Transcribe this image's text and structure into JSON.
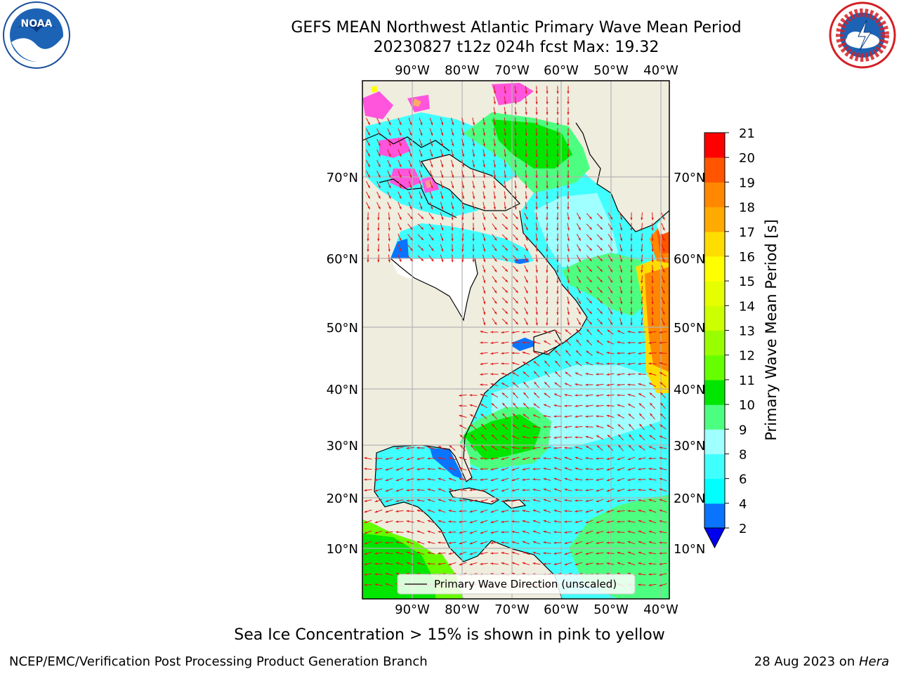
{
  "header": {
    "title_line1": "GEFS MEAN Northwest Atlantic Primary Wave Mean Period",
    "title_line2": "20230827 t12z 024h fcst   Max: 19.32"
  },
  "logos": {
    "left": {
      "name": "NOARA-logo",
      "text": "NOAA"
    },
    "right": {
      "name": "nws-logo"
    }
  },
  "map": {
    "lon_labels": [
      "90°W",
      "80°W",
      "70°W",
      "60°W",
      "50°W",
      "40°W"
    ],
    "lat_labels": [
      "70°N",
      "60°N",
      "50°N",
      "40°N",
      "30°N",
      "20°N",
      "10°N"
    ],
    "legend_label": "Primary Wave Direction (unscaled)",
    "colors": {
      "land": "#efedde",
      "grid": "#b3b3b3",
      "arrow": "#e11a1a",
      "coast": "#000000"
    }
  },
  "colorbar": {
    "label": "Primary Wave Mean Period [s]",
    "ticks": [
      "2",
      "4",
      "6",
      "8",
      "9",
      "10",
      "11",
      "12",
      "13",
      "14",
      "15",
      "16",
      "17",
      "18",
      "19",
      "20",
      "21"
    ],
    "colors": [
      "#0a74ff",
      "#00ffff",
      "#40ffff",
      "#a0ffff",
      "#4dff80",
      "#00e600",
      "#66ff00",
      "#99ff00",
      "#ccff00",
      "#e6ff00",
      "#ffff00",
      "#ffdd00",
      "#ffaa00",
      "#ff8800",
      "#ff5500",
      "#ff2200"
    ],
    "under_color": "#0000ee",
    "top_color": "#ff0000"
  },
  "footer": {
    "note": "Sea Ice Concentration > 15% is shown in pink to yellow",
    "left": "NCEP/EMC/Verification Post Processing Product Generation Branch",
    "date": "28 Aug 2023 on ",
    "host": "Hera"
  }
}
